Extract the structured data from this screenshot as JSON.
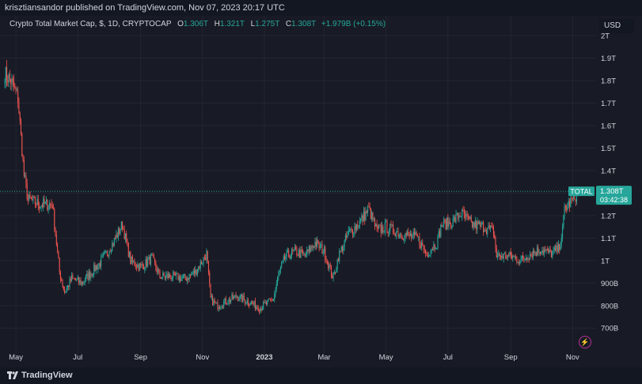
{
  "header": {
    "published_text": "krisztiansandor published on TradingView.com, Nov 07, 2023 20:17 UTC"
  },
  "legend": {
    "symbol": "Crypto Total Market Cap, $, 1D, CRYPTOCAP",
    "open_label": "O",
    "open_value": "1.306T",
    "high_label": "H",
    "high_value": "1.321T",
    "low_label": "L",
    "low_value": "1.275T",
    "close_label": "C",
    "close_value": "1.308T",
    "change": "+1.979B (+0.15%)"
  },
  "currency_button": "USD",
  "price_tag": {
    "symbol": "TOTAL",
    "price": "1.308T",
    "countdown": "03:42:38"
  },
  "footer": {
    "brand": "TradingView"
  },
  "colors": {
    "up": "#26a69a",
    "down": "#ef5350",
    "background": "#131722",
    "pane": "#181b25",
    "grid": "#232632"
  },
  "icons": {
    "logo": "tradingview-logo-icon",
    "alert": "lightning-icon"
  },
  "chart_data": {
    "type": "candlestick",
    "y_unit": "USD",
    "y_range": [
      620,
      2000
    ],
    "y_ticks": [
      {
        "value": 700,
        "label": "700B"
      },
      {
        "value": 800,
        "label": "800B"
      },
      {
        "value": 900,
        "label": "900B"
      },
      {
        "value": 1000,
        "label": "1T"
      },
      {
        "value": 1100,
        "label": "1.1T"
      },
      {
        "value": 1200,
        "label": "1.2T"
      },
      {
        "value": 1300,
        "label": "1.3T"
      },
      {
        "value": 1400,
        "label": "1.4T"
      },
      {
        "value": 1500,
        "label": "1.5T"
      },
      {
        "value": 1600,
        "label": "1.6T"
      },
      {
        "value": 1700,
        "label": "1.7T"
      },
      {
        "value": 1800,
        "label": "1.8T"
      },
      {
        "value": 1900,
        "label": "1.9T"
      },
      {
        "value": 2000,
        "label": "2T"
      }
    ],
    "x_range": [
      "2022-04-20",
      "2023-11-20"
    ],
    "x_ticks": [
      {
        "date": "2022-05-01",
        "label": "May"
      },
      {
        "date": "2022-07-01",
        "label": "Jul"
      },
      {
        "date": "2022-09-01",
        "label": "Sep"
      },
      {
        "date": "2022-11-01",
        "label": "Nov"
      },
      {
        "date": "2023-01-01",
        "label": "2023",
        "bold": true
      },
      {
        "date": "2023-03-01",
        "label": "Mar"
      },
      {
        "date": "2023-05-01",
        "label": "May"
      },
      {
        "date": "2023-07-01",
        "label": "Jul"
      },
      {
        "date": "2023-09-01",
        "label": "Sep"
      },
      {
        "date": "2023-11-01",
        "label": "Nov"
      }
    ],
    "last_close": 1308,
    "trend_path": [
      {
        "date": "2022-04-20",
        "value": 1830
      },
      {
        "date": "2022-04-26",
        "value": 1800
      },
      {
        "date": "2022-05-03",
        "value": 1720
      },
      {
        "date": "2022-05-09",
        "value": 1380
      },
      {
        "date": "2022-05-13",
        "value": 1270
      },
      {
        "date": "2022-05-25",
        "value": 1250
      },
      {
        "date": "2022-06-06",
        "value": 1250
      },
      {
        "date": "2022-06-13",
        "value": 950
      },
      {
        "date": "2022-06-18",
        "value": 860
      },
      {
        "date": "2022-06-25",
        "value": 920
      },
      {
        "date": "2022-07-05",
        "value": 900
      },
      {
        "date": "2022-07-15",
        "value": 950
      },
      {
        "date": "2022-07-25",
        "value": 1000
      },
      {
        "date": "2022-08-05",
        "value": 1080
      },
      {
        "date": "2022-08-14",
        "value": 1160
      },
      {
        "date": "2022-08-22",
        "value": 1000
      },
      {
        "date": "2022-09-01",
        "value": 970
      },
      {
        "date": "2022-09-12",
        "value": 1010
      },
      {
        "date": "2022-09-20",
        "value": 930
      },
      {
        "date": "2022-10-01",
        "value": 930
      },
      {
        "date": "2022-10-15",
        "value": 920
      },
      {
        "date": "2022-10-25",
        "value": 950
      },
      {
        "date": "2022-11-05",
        "value": 1030
      },
      {
        "date": "2022-11-09",
        "value": 830
      },
      {
        "date": "2022-11-15",
        "value": 800
      },
      {
        "date": "2022-11-25",
        "value": 820
      },
      {
        "date": "2022-12-05",
        "value": 840
      },
      {
        "date": "2022-12-15",
        "value": 820
      },
      {
        "date": "2022-12-28",
        "value": 790
      },
      {
        "date": "2023-01-10",
        "value": 830
      },
      {
        "date": "2023-01-15",
        "value": 940
      },
      {
        "date": "2023-01-22",
        "value": 1020
      },
      {
        "date": "2023-02-01",
        "value": 1040
      },
      {
        "date": "2023-02-10",
        "value": 1020
      },
      {
        "date": "2023-02-20",
        "value": 1080
      },
      {
        "date": "2023-03-01",
        "value": 1040
      },
      {
        "date": "2023-03-10",
        "value": 920
      },
      {
        "date": "2023-03-15",
        "value": 1020
      },
      {
        "date": "2023-03-25",
        "value": 1120
      },
      {
        "date": "2023-04-05",
        "value": 1170
      },
      {
        "date": "2023-04-14",
        "value": 1230
      },
      {
        "date": "2023-04-22",
        "value": 1130
      },
      {
        "date": "2023-05-01",
        "value": 1150
      },
      {
        "date": "2023-05-15",
        "value": 1120
      },
      {
        "date": "2023-06-01",
        "value": 1100
      },
      {
        "date": "2023-06-10",
        "value": 1030
      },
      {
        "date": "2023-06-20",
        "value": 1080
      },
      {
        "date": "2023-06-25",
        "value": 1160
      },
      {
        "date": "2023-07-05",
        "value": 1170
      },
      {
        "date": "2023-07-14",
        "value": 1210
      },
      {
        "date": "2023-07-25",
        "value": 1160
      },
      {
        "date": "2023-08-05",
        "value": 1150
      },
      {
        "date": "2023-08-15",
        "value": 1130
      },
      {
        "date": "2023-08-18",
        "value": 1020
      },
      {
        "date": "2023-09-01",
        "value": 1020
      },
      {
        "date": "2023-09-11",
        "value": 1000
      },
      {
        "date": "2023-09-20",
        "value": 1030
      },
      {
        "date": "2023-10-01",
        "value": 1050
      },
      {
        "date": "2023-10-10",
        "value": 1030
      },
      {
        "date": "2023-10-18",
        "value": 1050
      },
      {
        "date": "2023-10-22",
        "value": 1130
      },
      {
        "date": "2023-10-24",
        "value": 1230
      },
      {
        "date": "2023-11-01",
        "value": 1270
      },
      {
        "date": "2023-11-07",
        "value": 1308
      }
    ]
  }
}
